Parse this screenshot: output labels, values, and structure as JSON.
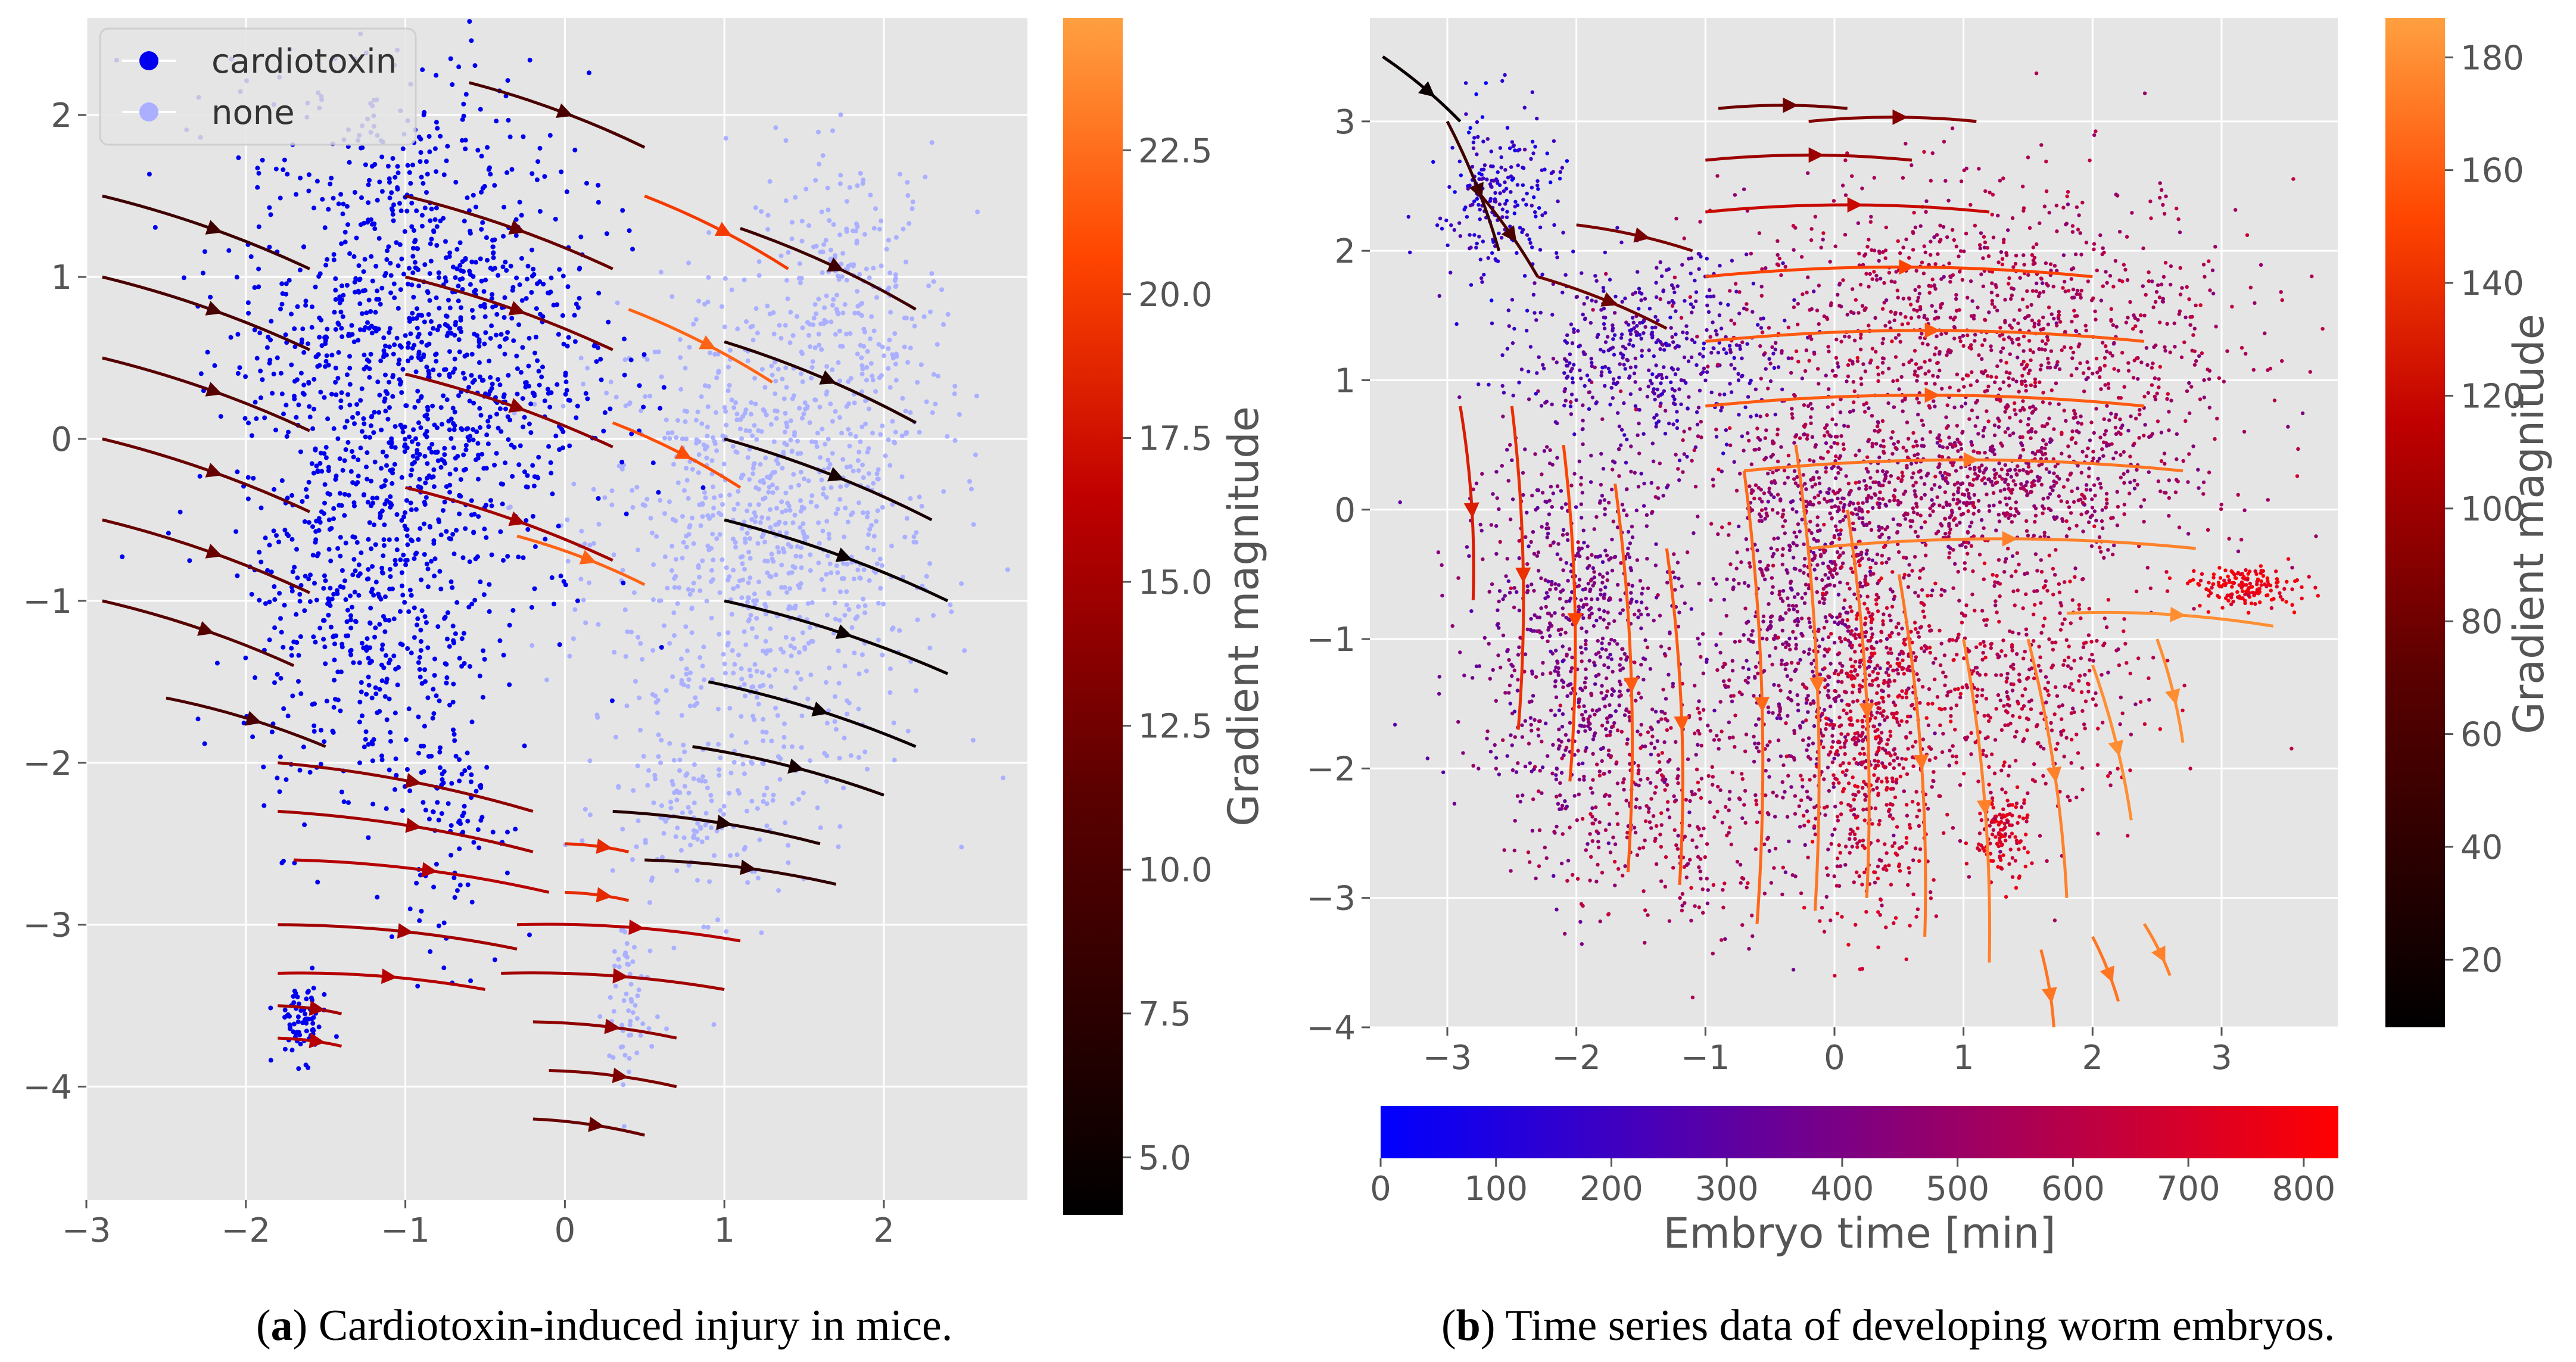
{
  "chart_data": [
    {
      "type": "scatter",
      "panel_label": "a",
      "caption": "Cardiotoxin-induced injury in mice.",
      "xlim": [
        -3.0,
        2.9
      ],
      "ylim": [
        -4.7,
        2.6
      ],
      "xticks": [
        -3,
        -2,
        -1,
        0,
        1,
        2
      ],
      "xtick_labels": [
        "−3",
        "−2",
        "−1",
        "0",
        "1",
        "2"
      ],
      "yticks": [
        2,
        1,
        0,
        -1,
        -2,
        -3,
        -4
      ],
      "ytick_labels": [
        "2",
        "1",
        "0",
        "−1",
        "−2",
        "−3",
        "−4"
      ],
      "grid": true,
      "legend_position": "top-left",
      "series": [
        {
          "name": "cardiotoxin",
          "color": "#0000ee",
          "clusters": [
            {
              "cx": -0.95,
              "cy": 0.55,
              "sx": 0.55,
              "sy": 0.85,
              "n": 1300
            },
            {
              "cx": -1.3,
              "cy": -1.2,
              "sx": 0.35,
              "sy": 0.6,
              "n": 350
            },
            {
              "cx": -0.7,
              "cy": -2.2,
              "sx": 0.15,
              "sy": 0.5,
              "n": 120
            },
            {
              "cx": -1.65,
              "cy": -3.6,
              "sx": 0.08,
              "sy": 0.12,
              "n": 70
            }
          ]
        },
        {
          "name": "none",
          "color": "#aab0ff",
          "clusters": [
            {
              "cx": 1.25,
              "cy": -0.6,
              "sx": 0.55,
              "sy": 0.75,
              "n": 900
            },
            {
              "cx": 1.8,
              "cy": 0.8,
              "sx": 0.3,
              "sy": 0.5,
              "n": 250
            },
            {
              "cx": 0.9,
              "cy": -2.3,
              "sx": 0.3,
              "sy": 0.3,
              "n": 150
            },
            {
              "cx": 0.4,
              "cy": -3.5,
              "sx": 0.08,
              "sy": 0.35,
              "n": 60
            }
          ]
        }
      ],
      "stream_arrows": [
        {
          "x": -2.9,
          "y": 1.5,
          "dx": 1.3,
          "dy": -0.45,
          "m": 9
        },
        {
          "x": -2.9,
          "y": 1.0,
          "dx": 1.3,
          "dy": -0.45,
          "m": 10
        },
        {
          "x": -2.9,
          "y": 0.5,
          "dx": 1.3,
          "dy": -0.45,
          "m": 11
        },
        {
          "x": -2.9,
          "y": 0.0,
          "dx": 1.3,
          "dy": -0.45,
          "m": 12
        },
        {
          "x": -2.9,
          "y": -0.5,
          "dx": 1.3,
          "dy": -0.45,
          "m": 12
        },
        {
          "x": -2.9,
          "y": -1.0,
          "dx": 1.2,
          "dy": -0.4,
          "m": 11
        },
        {
          "x": -2.5,
          "y": -1.6,
          "dx": 1.0,
          "dy": -0.3,
          "m": 10
        },
        {
          "x": -1.0,
          "y": 1.5,
          "dx": 1.3,
          "dy": -0.45,
          "m": 12
        },
        {
          "x": -1.0,
          "y": 1.0,
          "dx": 1.3,
          "dy": -0.45,
          "m": 13
        },
        {
          "x": -1.0,
          "y": 0.4,
          "dx": 1.3,
          "dy": -0.45,
          "m": 14
        },
        {
          "x": -1.0,
          "y": -0.3,
          "dx": 1.3,
          "dy": -0.45,
          "m": 15
        },
        {
          "x": -0.6,
          "y": 2.2,
          "dx": 1.1,
          "dy": -0.4,
          "m": 10
        },
        {
          "x": 0.5,
          "y": 1.5,
          "dx": 0.9,
          "dy": -0.45,
          "m": 20
        },
        {
          "x": 0.4,
          "y": 0.8,
          "dx": 0.9,
          "dy": -0.45,
          "m": 22
        },
        {
          "x": 0.3,
          "y": 0.1,
          "dx": 0.8,
          "dy": -0.4,
          "m": 21
        },
        {
          "x": -0.3,
          "y": -0.6,
          "dx": 0.8,
          "dy": -0.3,
          "m": 22
        },
        {
          "x": 1.1,
          "y": 1.3,
          "dx": 1.1,
          "dy": -0.5,
          "m": 9
        },
        {
          "x": 1.0,
          "y": 0.6,
          "dx": 1.2,
          "dy": -0.5,
          "m": 7
        },
        {
          "x": 1.0,
          "y": 0.0,
          "dx": 1.3,
          "dy": -0.5,
          "m": 6
        },
        {
          "x": 1.0,
          "y": -0.5,
          "dx": 1.4,
          "dy": -0.5,
          "m": 5
        },
        {
          "x": 1.0,
          "y": -1.0,
          "dx": 1.4,
          "dy": -0.45,
          "m": 5
        },
        {
          "x": 0.9,
          "y": -1.5,
          "dx": 1.3,
          "dy": -0.4,
          "m": 5
        },
        {
          "x": 0.8,
          "y": -1.9,
          "dx": 1.2,
          "dy": -0.3,
          "m": 6
        },
        {
          "x": 0.3,
          "y": -2.3,
          "dx": 1.3,
          "dy": -0.2,
          "m": 7
        },
        {
          "x": 0.5,
          "y": -2.6,
          "dx": 1.2,
          "dy": -0.15,
          "m": 8
        },
        {
          "x": -1.8,
          "y": -2.0,
          "dx": 1.6,
          "dy": -0.3,
          "m": 14
        },
        {
          "x": -1.8,
          "y": -2.3,
          "dx": 1.6,
          "dy": -0.25,
          "m": 15
        },
        {
          "x": -1.7,
          "y": -2.6,
          "dx": 1.6,
          "dy": -0.2,
          "m": 16
        },
        {
          "x": -1.8,
          "y": -3.0,
          "dx": 1.5,
          "dy": -0.15,
          "m": 15
        },
        {
          "x": -1.8,
          "y": -3.3,
          "dx": 1.3,
          "dy": -0.1,
          "m": 16
        },
        {
          "x": 0.0,
          "y": -2.5,
          "dx": 0.4,
          "dy": -0.05,
          "m": 19
        },
        {
          "x": 0.0,
          "y": -2.8,
          "dx": 0.4,
          "dy": -0.05,
          "m": 19
        },
        {
          "x": -0.3,
          "y": -3.0,
          "dx": 1.4,
          "dy": -0.1,
          "m": 16
        },
        {
          "x": -0.4,
          "y": -3.3,
          "dx": 1.4,
          "dy": -0.1,
          "m": 15
        },
        {
          "x": -0.2,
          "y": -3.6,
          "dx": 0.9,
          "dy": -0.1,
          "m": 14
        },
        {
          "x": -0.1,
          "y": -3.9,
          "dx": 0.8,
          "dy": -0.1,
          "m": 13
        },
        {
          "x": -0.2,
          "y": -4.2,
          "dx": 0.7,
          "dy": -0.1,
          "m": 12
        },
        {
          "x": -1.8,
          "y": -3.7,
          "dx": 0.4,
          "dy": -0.05,
          "m": 16
        },
        {
          "x": -1.8,
          "y": -3.5,
          "dx": 0.4,
          "dy": -0.05,
          "m": 15
        }
      ],
      "colorbar": {
        "label": "Gradient magnitude",
        "range": [
          4.0,
          24.8
        ],
        "ticks": [
          5.0,
          7.5,
          10.0,
          12.5,
          15.0,
          17.5,
          20.0,
          22.5
        ],
        "tick_labels": [
          "5.0",
          "7.5",
          "10.0",
          "12.5",
          "15.0",
          "17.5",
          "20.0",
          "22.5"
        ]
      }
    },
    {
      "type": "scatter",
      "panel_label": "b",
      "caption": "Time series data of developing worm embryos.",
      "xlim": [
        -3.6,
        3.9
      ],
      "ylim": [
        -4.0,
        3.8
      ],
      "xticks": [
        -3,
        -2,
        -1,
        0,
        1,
        2,
        3
      ],
      "xtick_labels": [
        "−3",
        "−2",
        "−1",
        "0",
        "1",
        "2",
        "3"
      ],
      "yticks": [
        3,
        2,
        1,
        0,
        -1,
        -2,
        -3,
        -4
      ],
      "ytick_labels": [
        "3",
        "2",
        "1",
        "0",
        "−1",
        "−2",
        "−3",
        "−4"
      ],
      "grid": true,
      "clusters": [
        {
          "cx": -2.6,
          "cy": 2.4,
          "sx": 0.25,
          "sy": 0.35,
          "t": 150,
          "n": 220
        },
        {
          "cx": -1.4,
          "cy": 1.2,
          "sx": 0.5,
          "sy": 0.35,
          "t": 250,
          "n": 450
        },
        {
          "cx": 1.2,
          "cy": 1.4,
          "sx": 1.0,
          "sy": 0.55,
          "t": 550,
          "n": 1100
        },
        {
          "cx": 1.0,
          "cy": 0.2,
          "sx": 0.9,
          "sy": 0.3,
          "t": 500,
          "n": 800
        },
        {
          "cx": 3.2,
          "cy": -0.6,
          "sx": 0.2,
          "sy": 0.08,
          "t": 780,
          "n": 160
        },
        {
          "cx": -2.0,
          "cy": -0.9,
          "sx": 0.45,
          "sy": 0.8,
          "t": 400,
          "n": 800
        },
        {
          "cx": -0.2,
          "cy": -0.9,
          "sx": 0.35,
          "sy": 0.8,
          "t": 450,
          "n": 700
        },
        {
          "cx": 0.3,
          "cy": -1.7,
          "sx": 0.25,
          "sy": 0.8,
          "t": 650,
          "n": 600
        },
        {
          "cx": 1.4,
          "cy": -1.3,
          "sx": 0.5,
          "sy": 0.6,
          "t": 600,
          "n": 500
        },
        {
          "cx": 1.3,
          "cy": -2.5,
          "sx": 0.1,
          "sy": 0.2,
          "t": 700,
          "n": 120
        },
        {
          "cx": -1.2,
          "cy": -2.3,
          "sx": 0.5,
          "sy": 0.5,
          "t": 550,
          "n": 350
        }
      ],
      "stream_arrows": [
        {
          "x": -3.5,
          "y": 3.5,
          "dx": 0.6,
          "dy": -0.5,
          "m": 15
        },
        {
          "x": -3.0,
          "y": 3.0,
          "dx": 0.4,
          "dy": -1.0,
          "m": 50
        },
        {
          "x": -2.8,
          "y": 2.5,
          "dx": 0.5,
          "dy": -0.7,
          "m": 60
        },
        {
          "x": -2.3,
          "y": 1.8,
          "dx": 1.0,
          "dy": -0.4,
          "m": 80
        },
        {
          "x": -2.0,
          "y": 2.2,
          "dx": 0.9,
          "dy": -0.2,
          "m": 85
        },
        {
          "x": -0.9,
          "y": 3.1,
          "dx": 1.0,
          "dy": 0.0,
          "m": 80
        },
        {
          "x": -0.2,
          "y": 3.0,
          "dx": 1.3,
          "dy": 0.0,
          "m": 90
        },
        {
          "x": -1.0,
          "y": 2.7,
          "dx": 1.6,
          "dy": 0.0,
          "m": 100
        },
        {
          "x": -1.0,
          "y": 2.3,
          "dx": 2.2,
          "dy": 0.0,
          "m": 120
        },
        {
          "x": -1.0,
          "y": 1.8,
          "dx": 3.0,
          "dy": 0.0,
          "m": 150
        },
        {
          "x": -1.0,
          "y": 1.3,
          "dx": 3.4,
          "dy": 0.0,
          "m": 160
        },
        {
          "x": -1.0,
          "y": 0.8,
          "dx": 3.4,
          "dy": 0.0,
          "m": 160
        },
        {
          "x": -0.7,
          "y": 0.3,
          "dx": 3.4,
          "dy": 0.0,
          "m": 170
        },
        {
          "x": -0.2,
          "y": -0.3,
          "dx": 3.0,
          "dy": 0.0,
          "m": 175
        },
        {
          "x": 1.8,
          "y": -0.8,
          "dx": 1.6,
          "dy": -0.1,
          "m": 180
        },
        {
          "x": -2.9,
          "y": 0.8,
          "dx": 0.1,
          "dy": -1.5,
          "m": 130
        },
        {
          "x": -2.5,
          "y": 0.8,
          "dx": 0.05,
          "dy": -2.5,
          "m": 140
        },
        {
          "x": -2.1,
          "y": 0.5,
          "dx": 0.05,
          "dy": -2.6,
          "m": 150
        },
        {
          "x": -1.7,
          "y": 0.2,
          "dx": 0.1,
          "dy": -3.0,
          "m": 160
        },
        {
          "x": -1.3,
          "y": -0.3,
          "dx": 0.1,
          "dy": -2.6,
          "m": 160
        },
        {
          "x": -0.7,
          "y": 0.3,
          "dx": 0.1,
          "dy": -3.5,
          "m": 165
        },
        {
          "x": -0.3,
          "y": 0.5,
          "dx": 0.15,
          "dy": -3.6,
          "m": 170
        },
        {
          "x": 0.1,
          "y": 0.0,
          "dx": 0.15,
          "dy": -3.0,
          "m": 170
        },
        {
          "x": 0.5,
          "y": -0.5,
          "dx": 0.2,
          "dy": -2.8,
          "m": 170
        },
        {
          "x": 1.0,
          "y": -1.0,
          "dx": 0.2,
          "dy": -2.5,
          "m": 175
        },
        {
          "x": 1.5,
          "y": -1.0,
          "dx": 0.3,
          "dy": -2.0,
          "m": 175
        },
        {
          "x": 2.0,
          "y": -1.2,
          "dx": 0.3,
          "dy": -1.2,
          "m": 180
        },
        {
          "x": 2.5,
          "y": -1.0,
          "dx": 0.2,
          "dy": -0.8,
          "m": 180
        },
        {
          "x": 1.6,
          "y": -3.4,
          "dx": 0.1,
          "dy": -0.6,
          "m": 170
        },
        {
          "x": 2.0,
          "y": -3.3,
          "dx": 0.2,
          "dy": -0.5,
          "m": 170
        },
        {
          "x": 2.4,
          "y": -3.2,
          "dx": 0.2,
          "dy": -0.4,
          "m": 175
        }
      ],
      "colorbar": {
        "label": "Gradient magnitude",
        "range": [
          8,
          187
        ],
        "ticks": [
          20,
          40,
          60,
          80,
          100,
          120,
          140,
          160,
          180
        ],
        "tick_labels": [
          "20",
          "40",
          "60",
          "80",
          "100",
          "120",
          "140",
          "160",
          "180"
        ]
      },
      "time_colorbar": {
        "label": "Embryo time [min]",
        "range": [
          0,
          830
        ],
        "ticks": [
          0,
          100,
          200,
          300,
          400,
          500,
          600,
          700,
          800
        ],
        "tick_labels": [
          "0",
          "100",
          "200",
          "300",
          "400",
          "500",
          "600",
          "700",
          "800"
        ]
      }
    }
  ],
  "colors": {
    "plot_bg": "#e5e5e5",
    "grid": "#ffffff",
    "tick_text": "#555555",
    "cardiotoxin": "#0000ee",
    "none": "#aab0ff"
  }
}
